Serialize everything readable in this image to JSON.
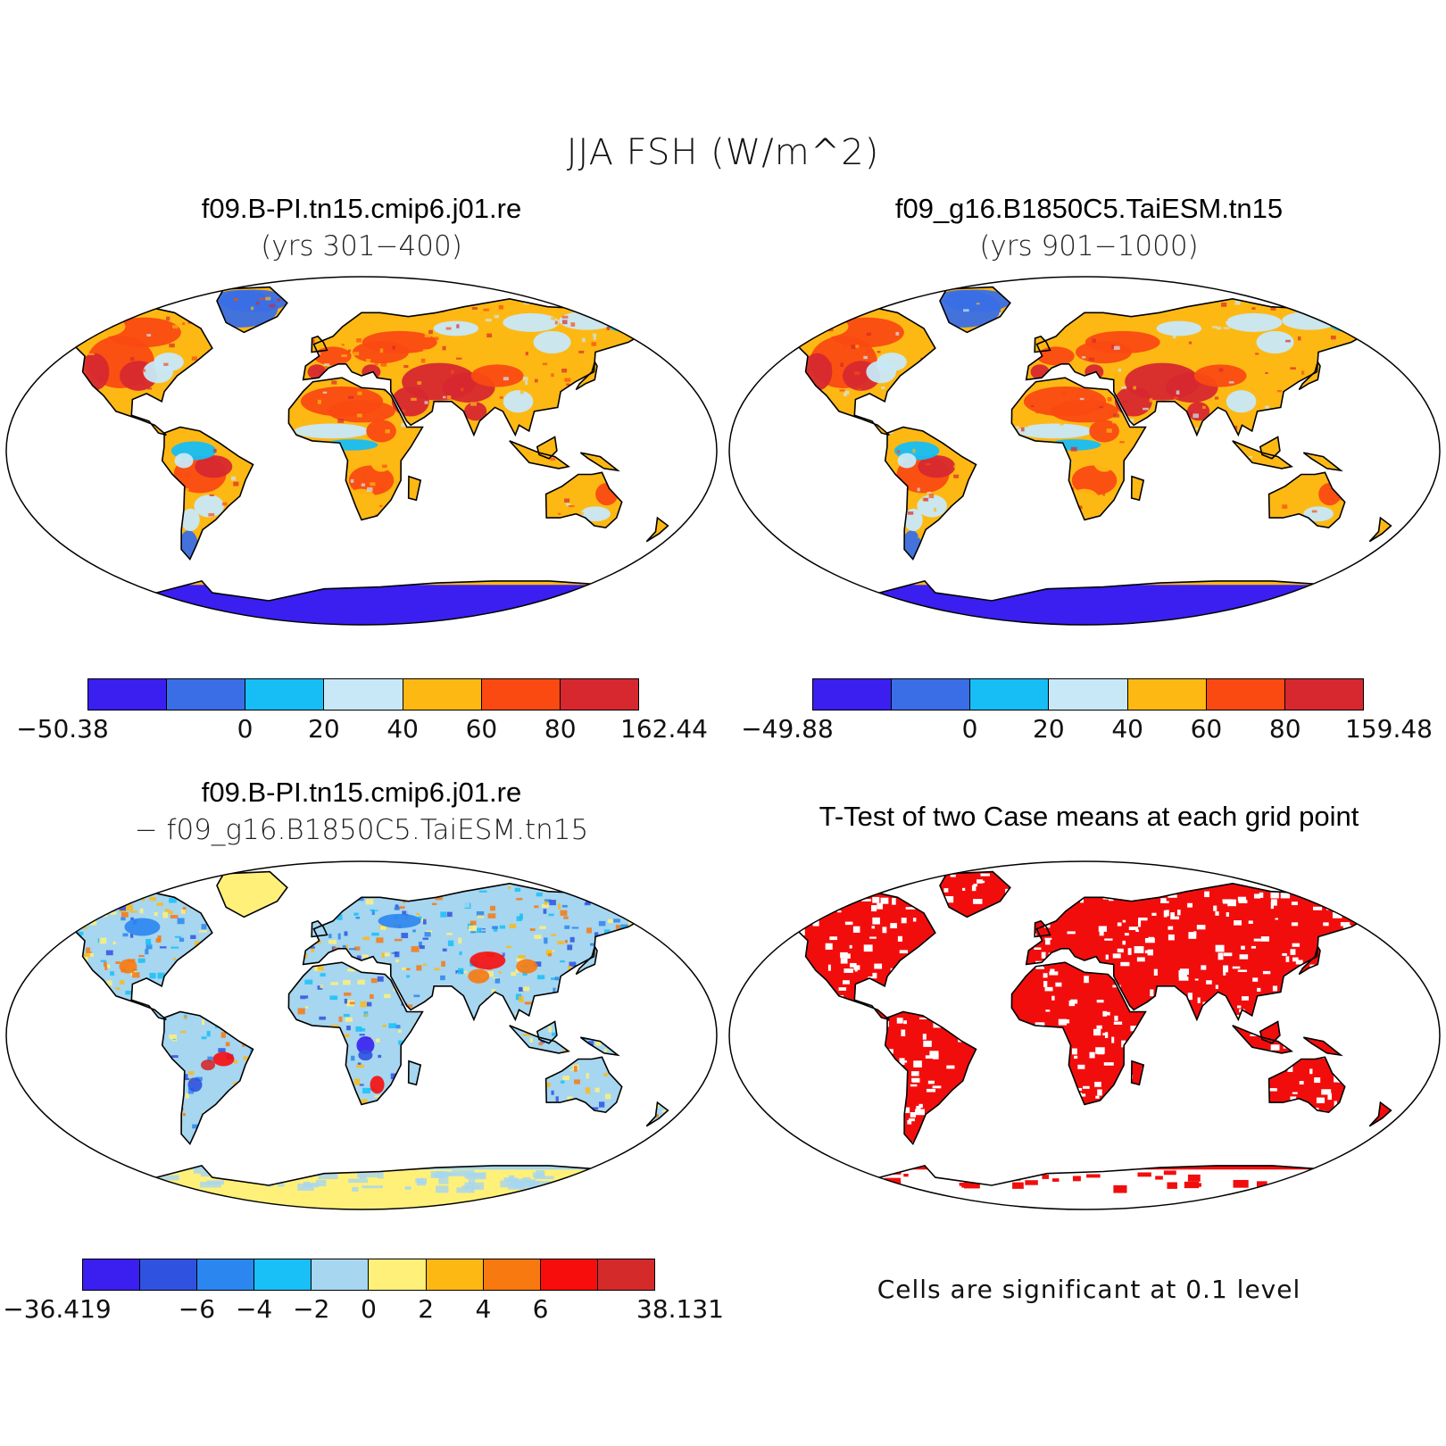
{
  "figure": {
    "title": "JJA FSH (W/m^2)"
  },
  "panels": [
    {
      "title": "f09.B-PI.tn15.cmip6.j01.re",
      "subtitle": "(yrs 301−400)",
      "colorbar": {
        "colors": [
          "#3a1ff0",
          "#3a6ee6",
          "#17bdf5",
          "#c8e8f8",
          "#fdb813",
          "#fa4a12",
          "#d7282f"
        ],
        "tick_labels": [
          "−50.38",
          "0",
          "20",
          "40",
          "60",
          "80",
          "162.44"
        ]
      }
    },
    {
      "title": "f09_g16.B1850C5.TaiESM.tn15",
      "subtitle": "(yrs 901−1000)",
      "colorbar": {
        "colors": [
          "#3a1ff0",
          "#3a6ee6",
          "#17bdf5",
          "#c8e8f8",
          "#fdb813",
          "#fa4a12",
          "#d7282f"
        ],
        "tick_labels": [
          "−49.88",
          "0",
          "20",
          "40",
          "60",
          "80",
          "159.48"
        ]
      }
    },
    {
      "title": "f09.B-PI.tn15.cmip6.j01.re",
      "subtitle": "− f09_g16.B1850C5.TaiESM.tn15",
      "colorbar": {
        "colors": [
          "#3a1ff0",
          "#2f52e0",
          "#2b86ef",
          "#19bff7",
          "#a6d6f0",
          "#fff07a",
          "#fdb813",
          "#f8790f",
          "#f80d0d",
          "#d42a2a"
        ],
        "tick_labels": [
          "−36.419",
          "−6",
          "−4",
          "−2",
          "0",
          "2",
          "4",
          "6",
          "38.131"
        ]
      }
    },
    {
      "title": "T-Test of two Case means at each grid point",
      "note": "Cells are significant at 0.1 level",
      "significant_color": "#f20d0d"
    }
  ]
}
